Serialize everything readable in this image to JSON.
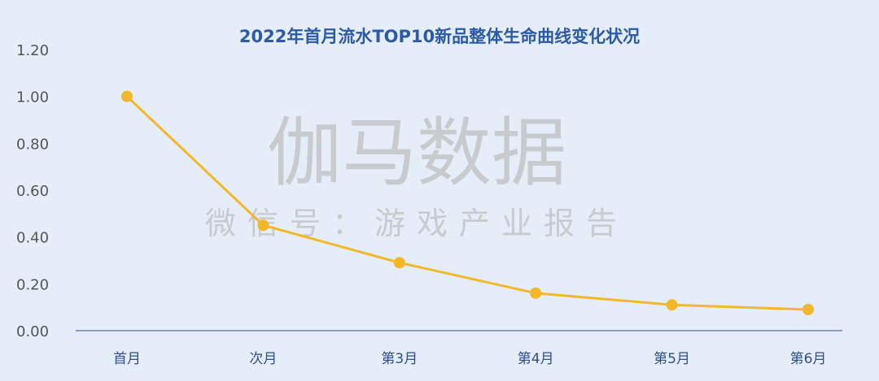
{
  "chart_data": {
    "type": "line",
    "title": "2022年首月流水TOP10新品整体生命曲线变化状况",
    "categories": [
      "首月",
      "次月",
      "第3月",
      "第4月",
      "第5月",
      "第6月"
    ],
    "values": [
      1.0,
      0.45,
      0.29,
      0.16,
      0.11,
      0.09
    ],
    "yticks": [
      "0.00",
      "0.20",
      "0.40",
      "0.60",
      "0.80",
      "1.00",
      "1.20"
    ],
    "ylim": [
      0,
      1.2
    ],
    "grid": false,
    "legend": "none",
    "colors": {
      "line": "#f2b82a",
      "axis": "#6a86b6",
      "background": "#e5edf8",
      "title": "#2b5aa6"
    }
  },
  "watermark": {
    "main": "伽马数据",
    "sub": "微信号：游戏产业报告"
  }
}
